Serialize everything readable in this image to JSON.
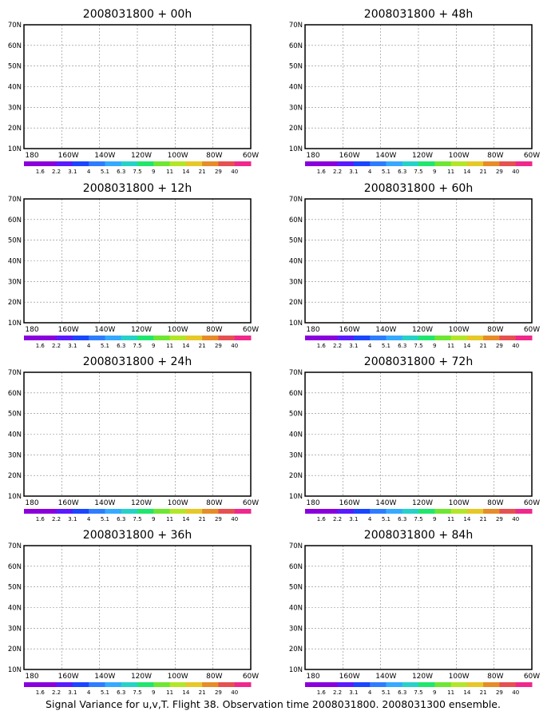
{
  "caption": "Signal Variance for u,v,T. Flight 38. Observation time 2008031800. 2008031300 ensemble.",
  "panels": [
    {
      "title": "2008031800 + 00h",
      "level": 0
    },
    {
      "title": "2008031800 + 12h",
      "level": 1
    },
    {
      "title": "2008031800 + 24h",
      "level": 2
    },
    {
      "title": "2008031800 + 36h",
      "level": 3
    },
    {
      "title": "2008031800 + 48h",
      "level": 4
    },
    {
      "title": "2008031800 + 60h",
      "level": 5
    },
    {
      "title": "2008031800 + 72h",
      "level": 6
    },
    {
      "title": "2008031800 + 84h",
      "level": 7
    }
  ],
  "lat_labels": [
    "10N",
    "20N",
    "30N",
    "40N",
    "50N",
    "60N",
    "70N"
  ],
  "lon_labels": [
    "180",
    "160W",
    "140W",
    "120W",
    "100W",
    "80W",
    "60W"
  ],
  "colorbar": {
    "labels": [
      "1.6",
      "2.2",
      "3.1",
      "4",
      "5.1",
      "6.3",
      "7.5",
      "9",
      "11",
      "14",
      "21",
      "29",
      "40"
    ],
    "colors": [
      "#8a00dc",
      "#8a00dc",
      "#5a1aff",
      "#1a46ff",
      "#2e7dff",
      "#35aaff",
      "#26d2c8",
      "#20e66e",
      "#6ee632",
      "#b4e628",
      "#e6c828",
      "#e68c28",
      "#e65050",
      "#f0288c"
    ]
  },
  "fill_colors": {
    "purple": "#8a00dc",
    "blue": "#3c32ff",
    "lightblue": "#3296ff",
    "cyan": "#32c8e6",
    "teal": "#32d2b4",
    "green": "#46e678"
  },
  "markers": {
    "observation_circle": "#ff1aa0"
  }
}
